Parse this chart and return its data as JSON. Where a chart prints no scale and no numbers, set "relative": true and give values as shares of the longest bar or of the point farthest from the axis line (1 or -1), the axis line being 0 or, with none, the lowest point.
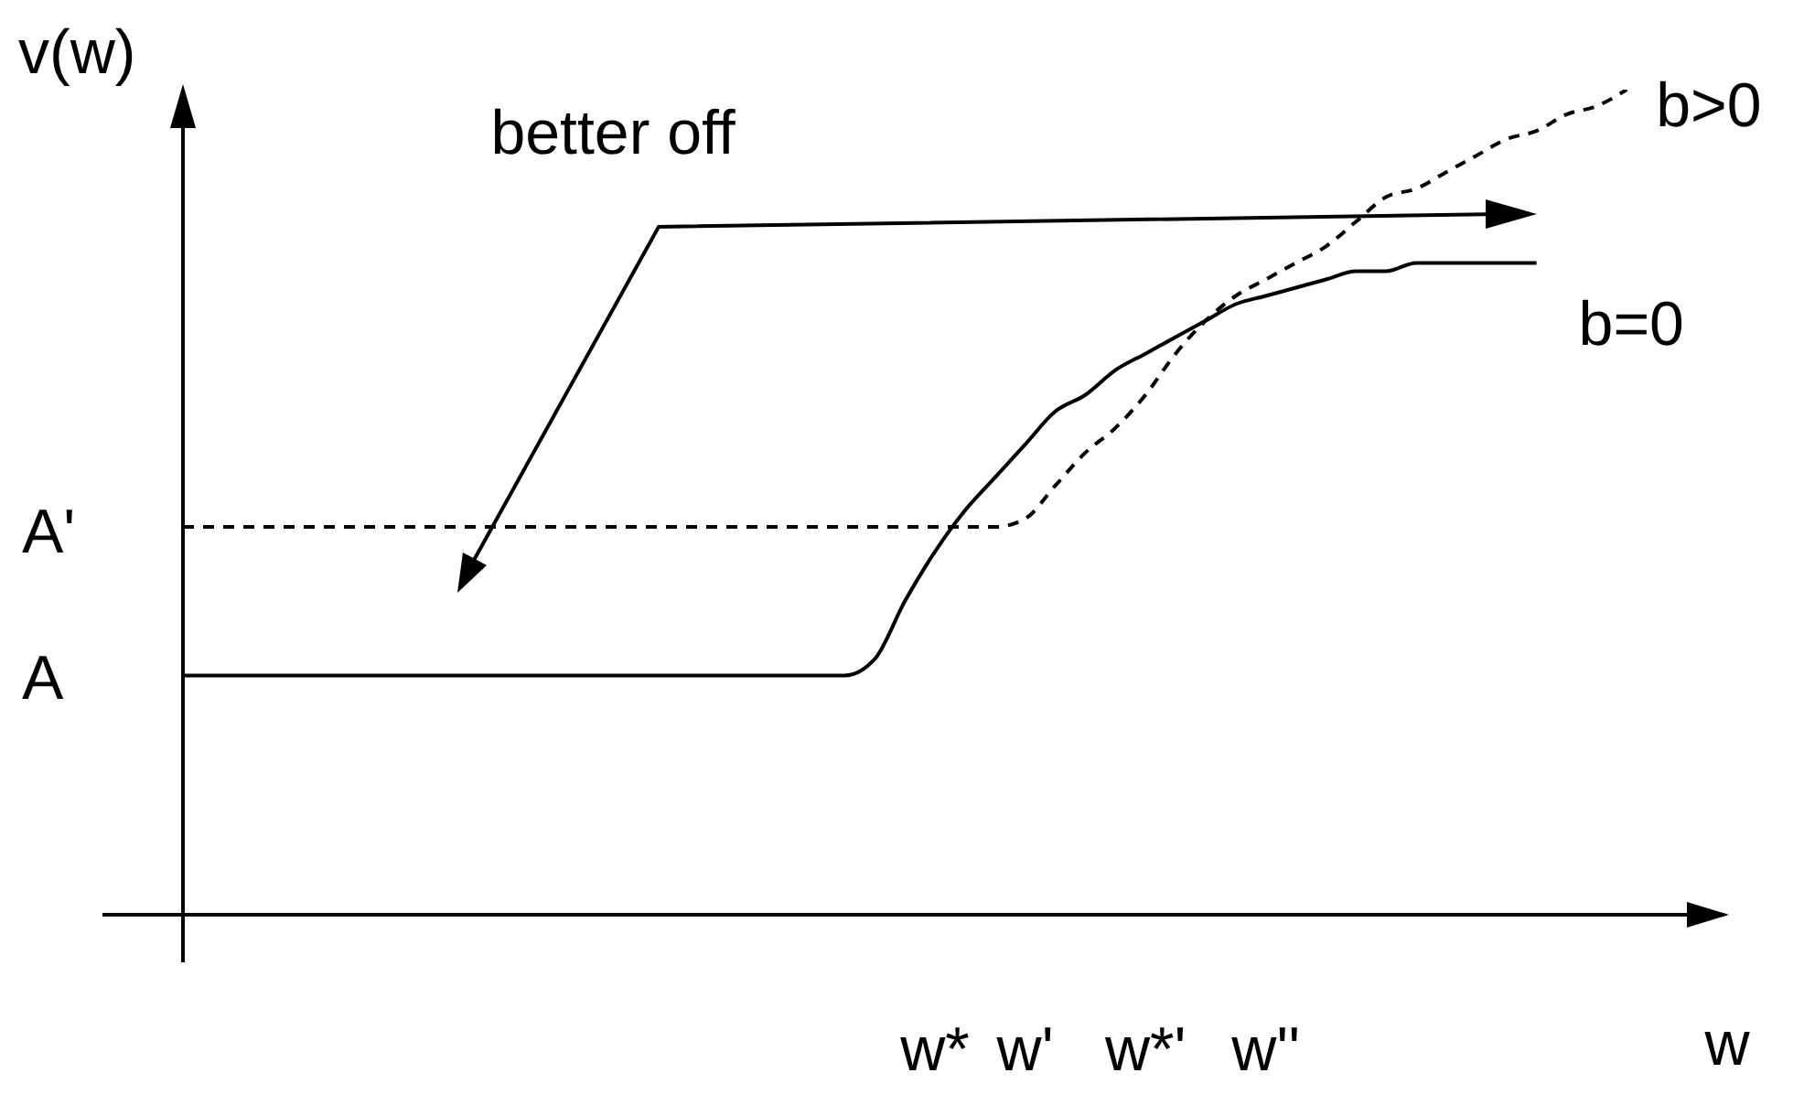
{
  "chart_data": {
    "type": "line",
    "xlabel": "w",
    "ylabel": "v(w)",
    "relative": true,
    "marker": "none",
    "categories": [
      null,
      null,
      null,
      null,
      null,
      null,
      null,
      null,
      null,
      null,
      null,
      null,
      null,
      null,
      null,
      null,
      null,
      null,
      null,
      null,
      null,
      null,
      null,
      null,
      null,
      "w*",
      null,
      null,
      "w'",
      null,
      null,
      null,
      "w*'",
      null,
      null,
      null,
      "w''",
      null,
      null,
      null,
      null,
      null,
      null,
      null,
      null,
      null,
      null,
      null,
      null,
      null,
      null
    ],
    "series": [
      {
        "name": "b=0",
        "color": "#000000",
        "line_style": "solid",
        "values": [
          0.29,
          0.29,
          0.29,
          0.29,
          0.29,
          0.29,
          0.29,
          0.29,
          0.29,
          0.29,
          0.29,
          0.29,
          0.29,
          0.29,
          0.29,
          0.29,
          0.29,
          0.29,
          0.29,
          0.29,
          0.29,
          0.29,
          0.29,
          0.31,
          0.38,
          0.44,
          0.49,
          0.53,
          0.57,
          0.61,
          0.63,
          0.66,
          0.68,
          0.7,
          0.72,
          0.74,
          0.75,
          0.76,
          0.77,
          0.78,
          0.78,
          0.79,
          0.79,
          0.79,
          0.79,
          0.79,
          null,
          null,
          null,
          null,
          null
        ]
      },
      {
        "name": "b>0",
        "color": "#000000",
        "line_style": "dashed",
        "values": [
          0.47,
          0.47,
          0.47,
          0.47,
          0.47,
          0.47,
          0.47,
          0.47,
          0.47,
          0.47,
          0.47,
          0.47,
          0.47,
          0.47,
          0.47,
          0.47,
          0.47,
          0.47,
          0.47,
          0.47,
          0.47,
          0.47,
          0.47,
          0.47,
          0.47,
          0.47,
          0.47,
          0.47,
          0.48,
          0.52,
          0.56,
          0.59,
          0.63,
          0.68,
          0.72,
          0.75,
          0.77,
          0.79,
          0.81,
          0.84,
          0.87,
          0.88,
          0.9,
          0.92,
          0.94,
          0.95,
          0.97,
          0.98,
          1,
          null,
          null
        ]
      }
    ],
    "annotations": [
      "better off",
      "A",
      "A'"
    ]
  }
}
